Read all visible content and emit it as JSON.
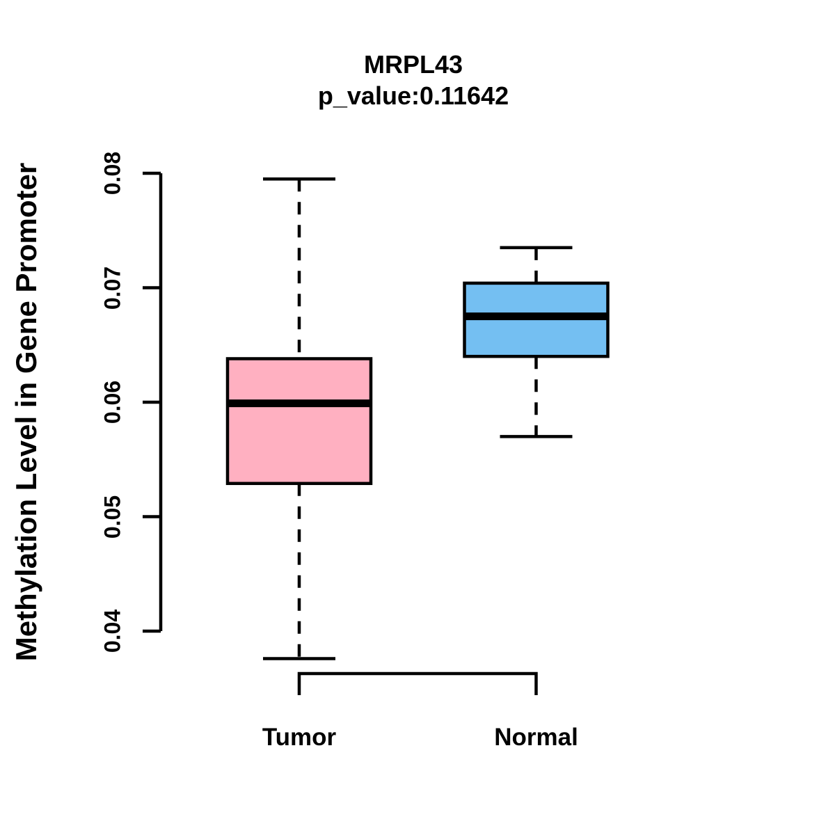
{
  "title": "MRPL43",
  "subtitle": "p_value:0.11642",
  "ylabel": "Methylation Level in Gene Promoter",
  "colors": {
    "background": "#ffffff",
    "line": "#000000",
    "tumor_fill": "#FFB0C1",
    "normal_fill": "#74BFF2"
  },
  "chart_data": {
    "type": "boxplot",
    "title": "MRPL43",
    "subtitle": "p_value:0.11642",
    "xlabel": "",
    "ylabel": "Methylation Level in Gene Promoter",
    "categories": [
      "Tumor",
      "Normal"
    ],
    "series": [
      {
        "name": "Tumor",
        "lower_whisker": 0.0376,
        "q1": 0.0529,
        "median": 0.0599,
        "q3": 0.0638,
        "upper_whisker": 0.0795,
        "fill": "#FFB0C1"
      },
      {
        "name": "Normal",
        "lower_whisker": 0.057,
        "q1": 0.064,
        "median": 0.0675,
        "q3": 0.0704,
        "upper_whisker": 0.0735,
        "fill": "#74BFF2"
      }
    ],
    "yticks": [
      0.04,
      0.05,
      0.06,
      0.07,
      0.08
    ],
    "ytick_labels": [
      "0.04",
      "0.05",
      "0.06",
      "0.07",
      "0.08"
    ],
    "ylim": [
      0.0376,
      0.0795
    ],
    "grid": false,
    "legend_position": "none",
    "whisker_style": "dashed"
  }
}
